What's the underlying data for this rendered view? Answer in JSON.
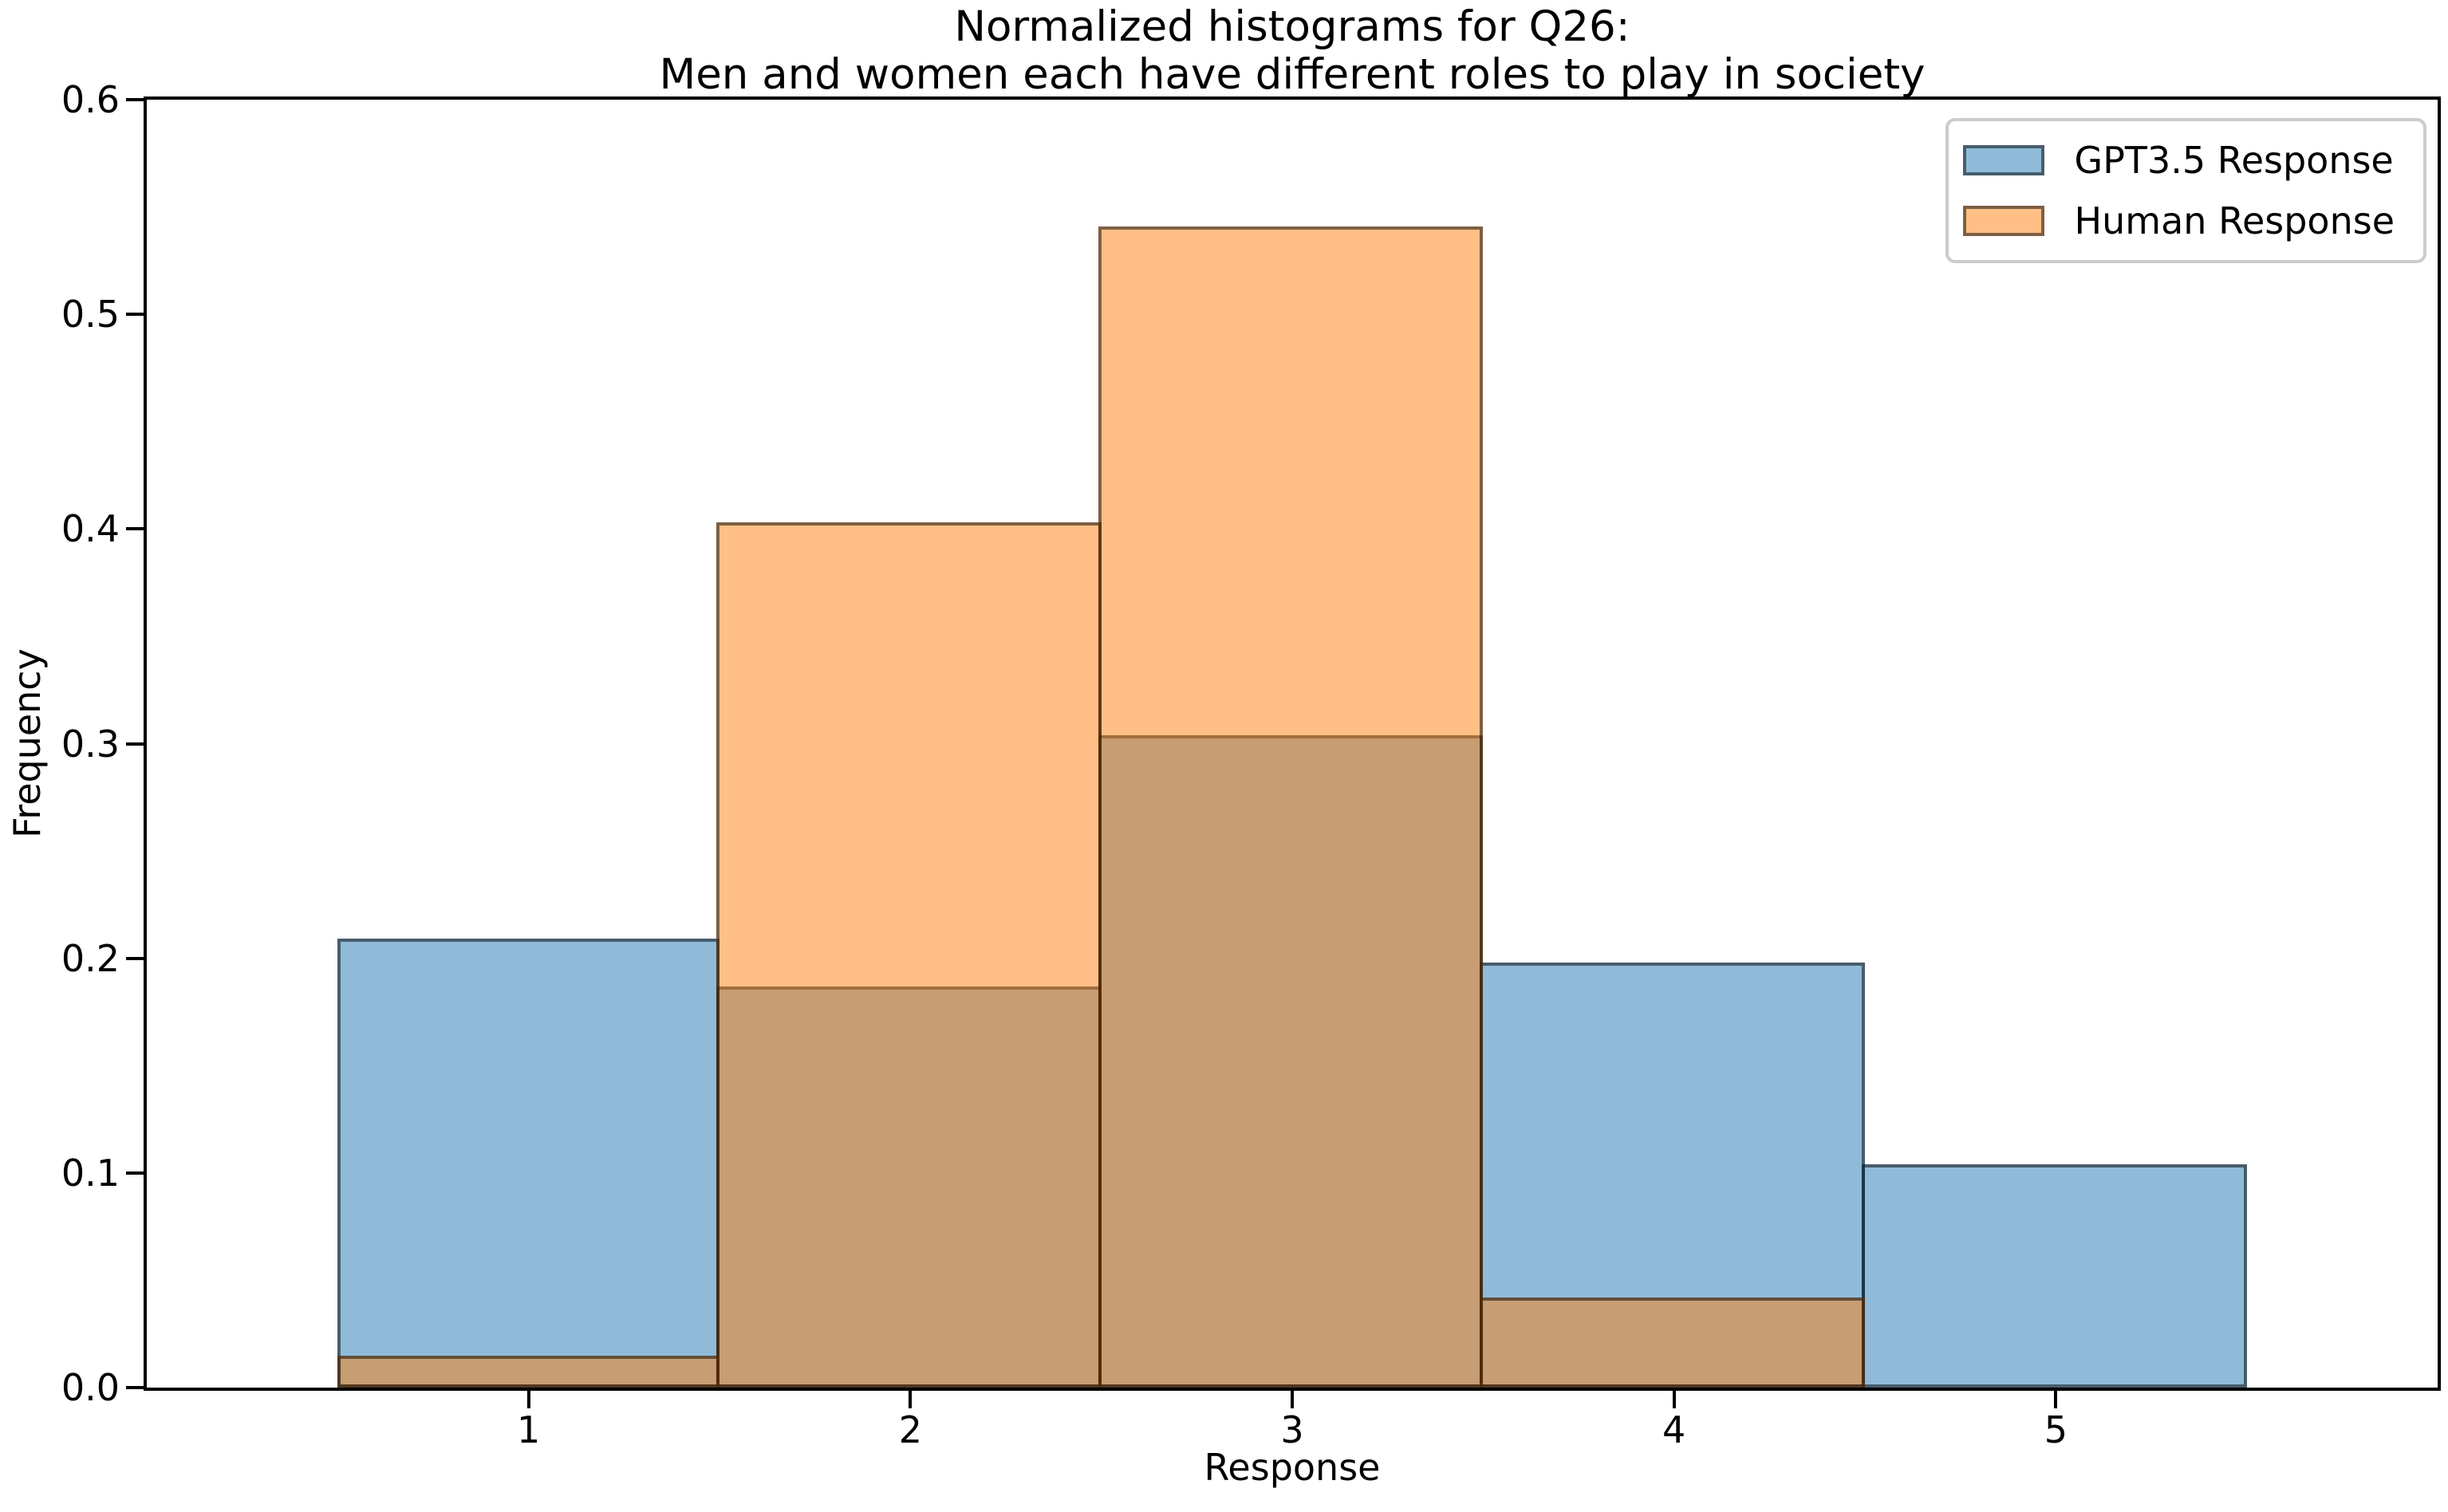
{
  "chart_data": {
    "type": "bar",
    "subtype": "overlapping-normalized-histogram",
    "title_line1": "Normalized histograms for Q26:",
    "title_line2": "Men and women each have different roles to play in society",
    "xlabel": "Response",
    "ylabel": "Frequency",
    "categories": [
      1,
      2,
      3,
      4,
      5
    ],
    "series": [
      {
        "name": "GPT3.5 Response",
        "color": "#1f77b4",
        "values": [
          0.209,
          0.187,
          0.304,
          0.198,
          0.104
        ]
      },
      {
        "name": "Human Response",
        "color": "#ff7f0e",
        "values": [
          0.015,
          0.403,
          0.541,
          0.042,
          0
        ]
      }
    ],
    "fill_alpha": 0.5,
    "edge_color": "rgba(0,0,0,0.5)",
    "bin_width": 1,
    "xlim": [
      0,
      6
    ],
    "ylim": [
      0,
      0.6
    ],
    "yticks": [
      "0.0",
      "0.1",
      "0.2",
      "0.3",
      "0.4",
      "0.5",
      "0.6"
    ],
    "xticks": [
      "1",
      "2",
      "3",
      "4",
      "5"
    ],
    "grid": false,
    "legend_position": "upper right"
  }
}
